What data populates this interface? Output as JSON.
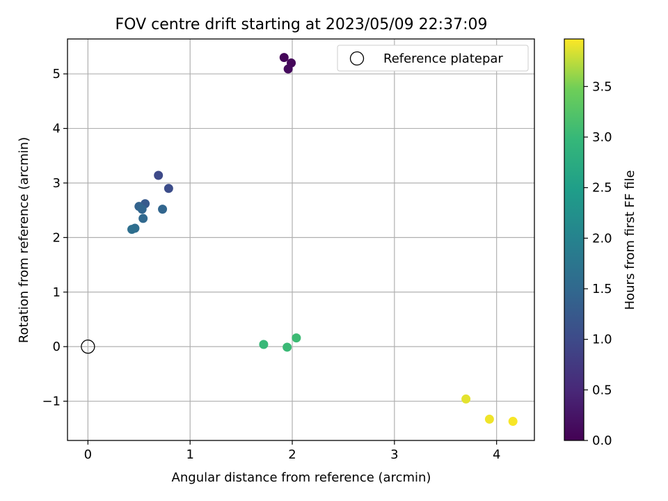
{
  "chart_data": {
    "type": "scatter",
    "title": "FOV centre drift starting at 2023/05/09 22:37:09",
    "xlabel": "Angular distance from reference (arcmin)",
    "ylabel": "Rotation from reference (arcmin)",
    "xlim": [
      -0.2,
      4.37
    ],
    "ylim": [
      -1.72,
      5.64
    ],
    "xticks": [
      0,
      1,
      2,
      3,
      4
    ],
    "xtick_labels": [
      "0",
      "1",
      "2",
      "3",
      "4"
    ],
    "yticks": [
      -1,
      0,
      1,
      2,
      3,
      4,
      5
    ],
    "ytick_labels": [
      "−1",
      "0",
      "1",
      "2",
      "3",
      "4",
      "5"
    ],
    "grid": true,
    "legend": {
      "placement": "top-right",
      "entries": [
        {
          "label": "Reference platepar",
          "marker": "open-circle"
        }
      ]
    },
    "reference_point": {
      "x": 0,
      "y": 0
    },
    "colorbar": {
      "label": "Hours from first FF file",
      "colormap": "viridis",
      "range": [
        0,
        3.97
      ],
      "ticks": [
        0.0,
        0.5,
        1.0,
        1.5,
        2.0,
        2.5,
        3.0,
        3.5
      ],
      "tick_labels": [
        "0.0",
        "0.5",
        "1.0",
        "1.5",
        "2.0",
        "2.5",
        "3.0",
        "3.5"
      ]
    },
    "points": [
      {
        "x": 1.92,
        "y": 5.3,
        "c": 0.05
      },
      {
        "x": 1.99,
        "y": 5.2,
        "c": 0.08
      },
      {
        "x": 1.96,
        "y": 5.09,
        "c": 0.12
      },
      {
        "x": 0.69,
        "y": 3.14,
        "c": 1.0
      },
      {
        "x": 0.79,
        "y": 2.9,
        "c": 1.05
      },
      {
        "x": 0.56,
        "y": 2.62,
        "c": 1.25
      },
      {
        "x": 0.5,
        "y": 2.57,
        "c": 1.4
      },
      {
        "x": 0.53,
        "y": 2.52,
        "c": 1.45
      },
      {
        "x": 0.73,
        "y": 2.52,
        "c": 1.45
      },
      {
        "x": 0.54,
        "y": 2.35,
        "c": 1.5
      },
      {
        "x": 0.46,
        "y": 2.17,
        "c": 1.58
      },
      {
        "x": 0.43,
        "y": 2.15,
        "c": 1.62
      },
      {
        "x": 1.72,
        "y": 0.04,
        "c": 3.0
      },
      {
        "x": 1.95,
        "y": -0.01,
        "c": 3.03
      },
      {
        "x": 2.04,
        "y": 0.16,
        "c": 3.05
      },
      {
        "x": 3.7,
        "y": -0.96,
        "c": 3.88
      },
      {
        "x": 3.93,
        "y": -1.33,
        "c": 3.92
      },
      {
        "x": 4.16,
        "y": -1.37,
        "c": 3.95
      }
    ]
  }
}
